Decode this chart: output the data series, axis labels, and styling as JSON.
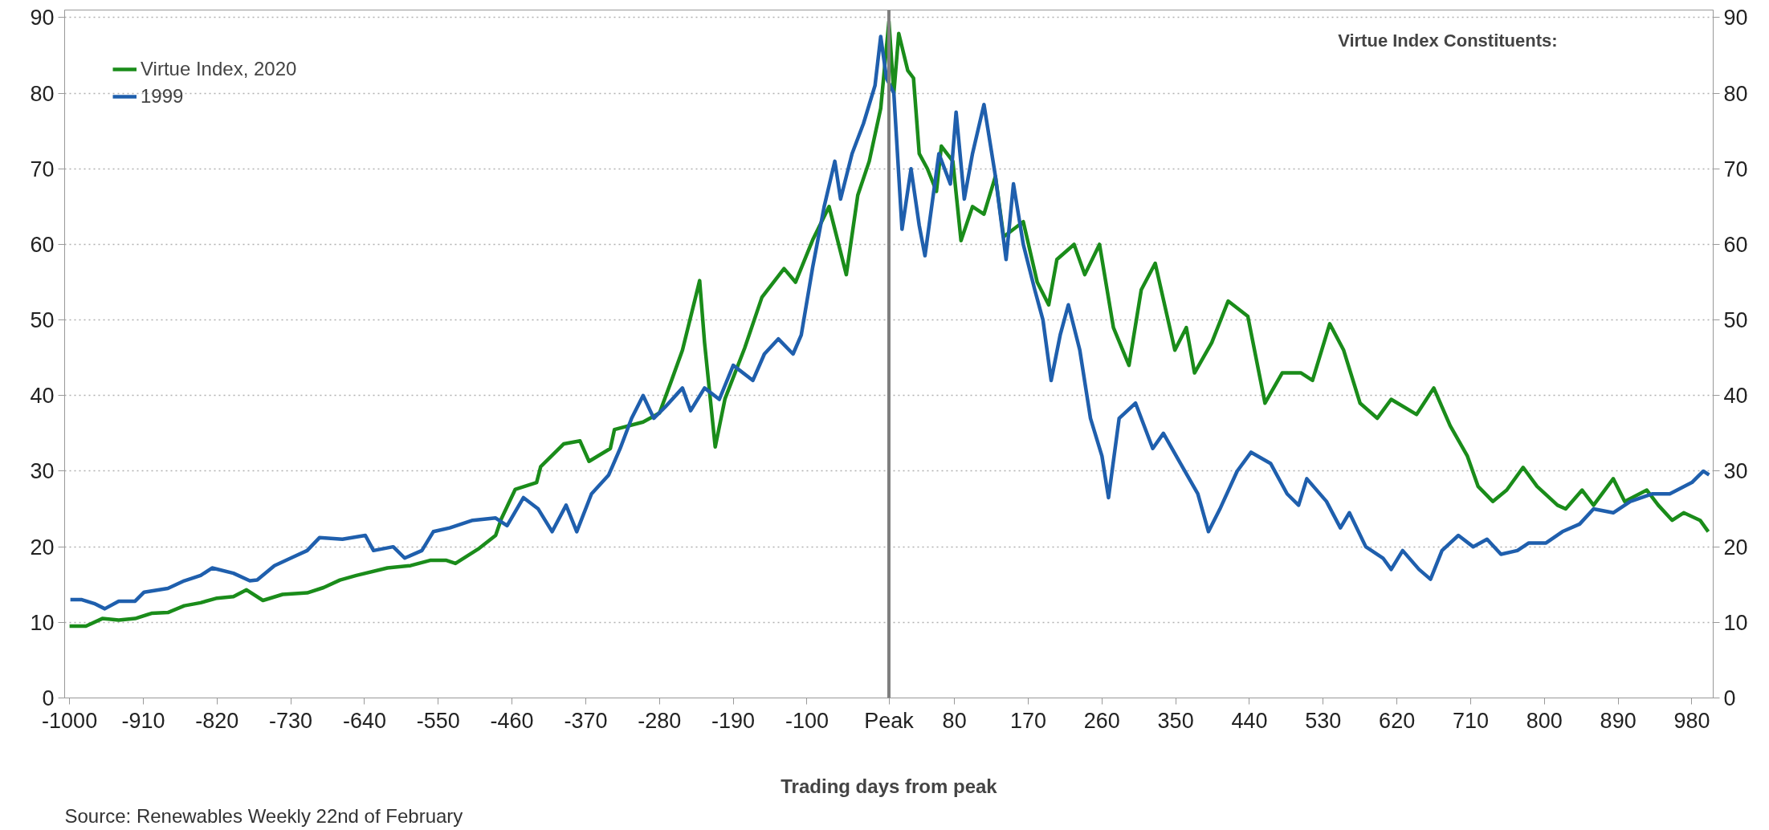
{
  "chart_data": {
    "type": "line",
    "xlabel": "Trading days from peak",
    "annotations": [
      "Virtue Index Constituents:",
      "Source: Renewables Weekly 22nd of February"
    ],
    "xlim": [
      -1006,
      1006
    ],
    "ylim": [
      0,
      91
    ],
    "y2lim": [
      0,
      91
    ],
    "xticks": [
      -1000,
      -910,
      -820,
      -730,
      -640,
      -550,
      -460,
      -370,
      -280,
      -190,
      -100,
      80,
      170,
      260,
      350,
      440,
      530,
      620,
      710,
      800,
      890,
      980
    ],
    "yticks": [
      0,
      10,
      20,
      30,
      40,
      50,
      60,
      70,
      80,
      90
    ],
    "y2ticks": [
      0,
      10,
      20,
      30,
      40,
      50,
      60,
      70,
      80,
      90
    ],
    "grid": "y",
    "legend": "top left",
    "line_style": "solid",
    "marker": "none",
    "ref_lines": [
      {
        "axis": "x",
        "value": 0,
        "label": "Peak",
        "color": "#7f7f7f"
      }
    ],
    "series": [
      {
        "name": "Virtue Index, 2020",
        "color": "#1a8c1a",
        "x": [
          -1000,
          -980,
          -960,
          -940,
          -920,
          -900,
          -880,
          -860,
          -840,
          -820,
          -800,
          -784,
          -764,
          -740,
          -710,
          -690,
          -670,
          -650,
          -612,
          -584,
          -560,
          -540,
          -529,
          -500,
          -480,
          -473,
          -456,
          -430,
          -425,
          -397,
          -377,
          -366,
          -340,
          -335,
          -300,
          -280,
          -266,
          -252,
          -231,
          -225,
          -212,
          -200,
          -176,
          -155,
          -128,
          -114,
          -93,
          -73,
          -52,
          -38,
          -24,
          -10,
          0,
          6,
          12,
          23,
          30,
          37,
          47,
          58,
          64,
          78,
          88,
          102,
          116,
          130,
          140,
          164,
          181,
          195,
          205,
          226,
          239,
          257,
          274,
          293,
          308,
          325,
          349,
          363,
          373,
          394,
          414,
          438,
          459,
          480,
          503,
          517,
          538,
          555,
          575,
          596,
          613,
          644,
          665,
          685,
          706,
          719,
          737,
          754,
          774,
          791,
          816,
          826,
          846,
          860,
          884,
          898,
          925,
          939,
          956,
          970,
          990,
          1000
        ],
        "values": [
          9.5,
          9.5,
          10.5,
          10.3,
          10.5,
          11.2,
          11.3,
          12.2,
          12.6,
          13.2,
          13.4,
          14.3,
          12.9,
          13.7,
          13.9,
          14.6,
          15.6,
          16.2,
          17.2,
          17.5,
          18.2,
          18.2,
          17.8,
          19.8,
          21.5,
          23.7,
          27.6,
          28.5,
          30.6,
          33.6,
          34,
          31.3,
          33,
          35.5,
          36.5,
          37.7,
          41.8,
          46,
          55.2,
          47,
          33.2,
          39.6,
          46.3,
          53,
          56.8,
          55,
          60.6,
          65,
          56,
          66.5,
          71,
          78,
          89.5,
          80,
          87.9,
          83,
          82,
          72,
          70,
          67,
          73,
          71,
          60.5,
          65,
          64,
          69,
          61,
          63,
          55,
          52,
          58,
          60,
          56,
          60,
          49,
          44,
          54,
          57.5,
          46,
          49,
          43,
          47,
          52.5,
          50.5,
          39,
          43,
          43,
          42,
          49.5,
          46,
          39,
          37,
          39.5,
          37.5,
          41,
          36,
          32,
          28,
          26,
          27.5,
          30.5,
          28,
          25.5,
          25,
          27.5,
          25.5,
          29,
          26,
          27.5,
          25.5,
          23.5,
          24.5,
          23.5,
          22
        ]
      },
      {
        "name": "1999",
        "color": "#1f5fad",
        "x": [
          -999,
          -985,
          -970,
          -957,
          -940,
          -920,
          -909,
          -880,
          -860,
          -840,
          -826,
          -800,
          -780,
          -771,
          -750,
          -730,
          -710,
          -695,
          -667,
          -639,
          -629,
          -605,
          -591,
          -570,
          -556,
          -536,
          -508,
          -480,
          -466,
          -446,
          -428,
          -411,
          -394,
          -381,
          -363,
          -342,
          -328,
          -314,
          -300,
          -287,
          -273,
          -252,
          -242,
          -225,
          -207,
          -190,
          -166,
          -152,
          -135,
          -117,
          -107,
          -93,
          -79,
          -66,
          -59,
          -45,
          -31,
          -17,
          -10,
          -3,
          6,
          16,
          27,
          37,
          44,
          61,
          75,
          82,
          92,
          102,
          116,
          130,
          143,
          152,
          164,
          178,
          188,
          198,
          209,
          219,
          233,
          246,
          260,
          268,
          281,
          301,
          322,
          335,
          356,
          377,
          390,
          404,
          425,
          442,
          466,
          486,
          500,
          510,
          534,
          551,
          562,
          582,
          603,
          613,
          627,
          647,
          661,
          675,
          695,
          713,
          730,
          747,
          767,
          781,
          802,
          822,
          843,
          860,
          884,
          905,
          932,
          953,
          980,
          994,
          1001
        ],
        "values": [
          13,
          13,
          12.5,
          11.8,
          12.8,
          12.8,
          14,
          14.5,
          15.5,
          16.2,
          17.2,
          16.5,
          15.5,
          15.6,
          17.5,
          18.5,
          19.5,
          21.2,
          21,
          21.5,
          19.5,
          20,
          18.5,
          19.5,
          22,
          22.5,
          23.5,
          23.8,
          22.8,
          26.5,
          25,
          22,
          25.5,
          22,
          27,
          29.5,
          33,
          37,
          40,
          37,
          38.5,
          41,
          38,
          41,
          39.5,
          44,
          42,
          45.5,
          47.5,
          45.5,
          48,
          57,
          65,
          71,
          66,
          72,
          76,
          81,
          87.5,
          82,
          80,
          62,
          70,
          62.5,
          58.5,
          72,
          68,
          77.5,
          66,
          72,
          78.5,
          69,
          58,
          68,
          60,
          54,
          50,
          42,
          48,
          52,
          46,
          37,
          32,
          26.5,
          37,
          39,
          33,
          35,
          31,
          27,
          22,
          25,
          30,
          32.5,
          31,
          27,
          25.5,
          29,
          26,
          22.5,
          24.5,
          20,
          18.5,
          17,
          19.5,
          17,
          15.7,
          19.5,
          21.5,
          20,
          21,
          19,
          19.5,
          20.5,
          20.5,
          22,
          23,
          25,
          24.5,
          26,
          27,
          27,
          28.5,
          30,
          29.5
        ]
      }
    ]
  }
}
